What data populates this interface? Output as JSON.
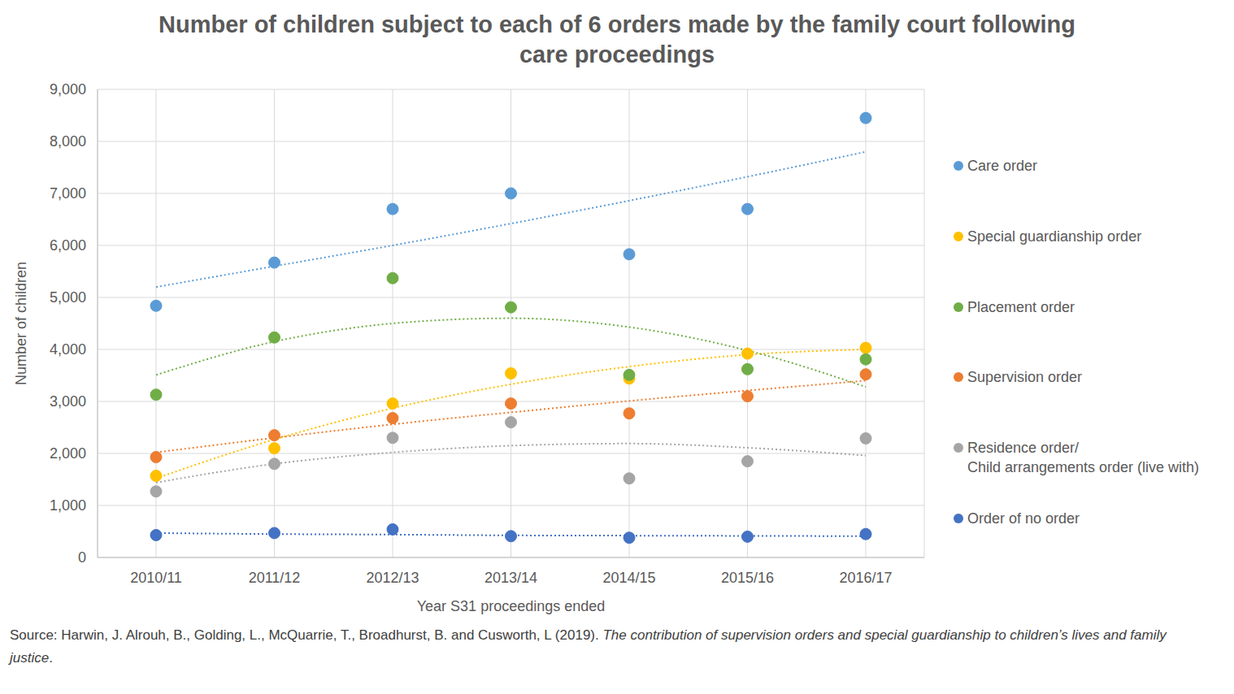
{
  "chart_data": {
    "type": "scatter",
    "title": "Number of children subject to each of 6 orders made by the family court following\ncare proceedings",
    "x_label": "Year S31 proceedings ended",
    "y_label": "Number of children",
    "categories": [
      "2010/11",
      "2011/12",
      "2012/13",
      "2013/14",
      "2014/15",
      "2015/16",
      "2016/17"
    ],
    "series": [
      {
        "name": "Care order",
        "color": "#5b9bd5",
        "values": [
          4840,
          5670,
          6700,
          7000,
          5830,
          6700,
          8450
        ],
        "trend": [
          5200,
          5600,
          6000,
          6420,
          6860,
          7320,
          7800
        ]
      },
      {
        "name": "Special guardianship order",
        "color": "#ffc000",
        "values": [
          1570,
          2100,
          2960,
          3540,
          3440,
          3920,
          4030
        ],
        "trend": [
          1520,
          2270,
          2870,
          3330,
          3670,
          3900,
          4000
        ]
      },
      {
        "name": "Placement order",
        "color": "#70ad47",
        "values": [
          3130,
          4230,
          5370,
          4810,
          3510,
          3620,
          3810
        ],
        "trend": [
          3510,
          4150,
          4500,
          4600,
          4430,
          3980,
          3280
        ]
      },
      {
        "name": "Supervision order",
        "color": "#ed7d31",
        "values": [
          1930,
          2350,
          2680,
          2960,
          2770,
          3100,
          3520
        ],
        "trend": [
          2020,
          2300,
          2560,
          2790,
          3010,
          3210,
          3400
        ]
      },
      {
        "name": "Residence order/\nChild arrangements order (live with)",
        "color": "#a5a5a5",
        "values": [
          1270,
          1800,
          2300,
          2600,
          1520,
          1850,
          2290
        ],
        "trend": [
          1440,
          1800,
          2020,
          2150,
          2190,
          2110,
          1960
        ]
      },
      {
        "name": "Order of no order",
        "color": "#4472c4",
        "values": [
          430,
          470,
          540,
          410,
          380,
          400,
          450
        ],
        "trend": [
          470,
          450,
          440,
          425,
          420,
          415,
          410
        ]
      }
    ],
    "ylim": [
      0,
      9000
    ],
    "yticks": [
      0,
      {
        "value": 1000,
        "label": "1,000"
      },
      {
        "value": 2000,
        "label": "2,000"
      },
      {
        "value": 3000,
        "label": "3,000"
      },
      {
        "value": 4000,
        "label": "4,000"
      },
      {
        "value": 5000,
        "label": "5,000"
      },
      {
        "value": 6000,
        "label": "6,000"
      },
      {
        "value": 7000,
        "label": "7,000"
      },
      {
        "value": 8000,
        "label": "8,000"
      },
      {
        "value": 9000,
        "label": "9,000"
      }
    ],
    "grid": true,
    "legend": "right",
    "marker": "circle",
    "line_style": "dotted",
    "source": "Source: Harwin, J. Alrouh, B., Golding, L., McQuarrie, T., Broadhurst, B. and Cusworth, L (2019). The contribution of supervision orders and special guardianship to children’s lives and family justice.",
    "source_italic": "The contribution of supervision orders and special guardianship to children’s lives and family justice"
  }
}
